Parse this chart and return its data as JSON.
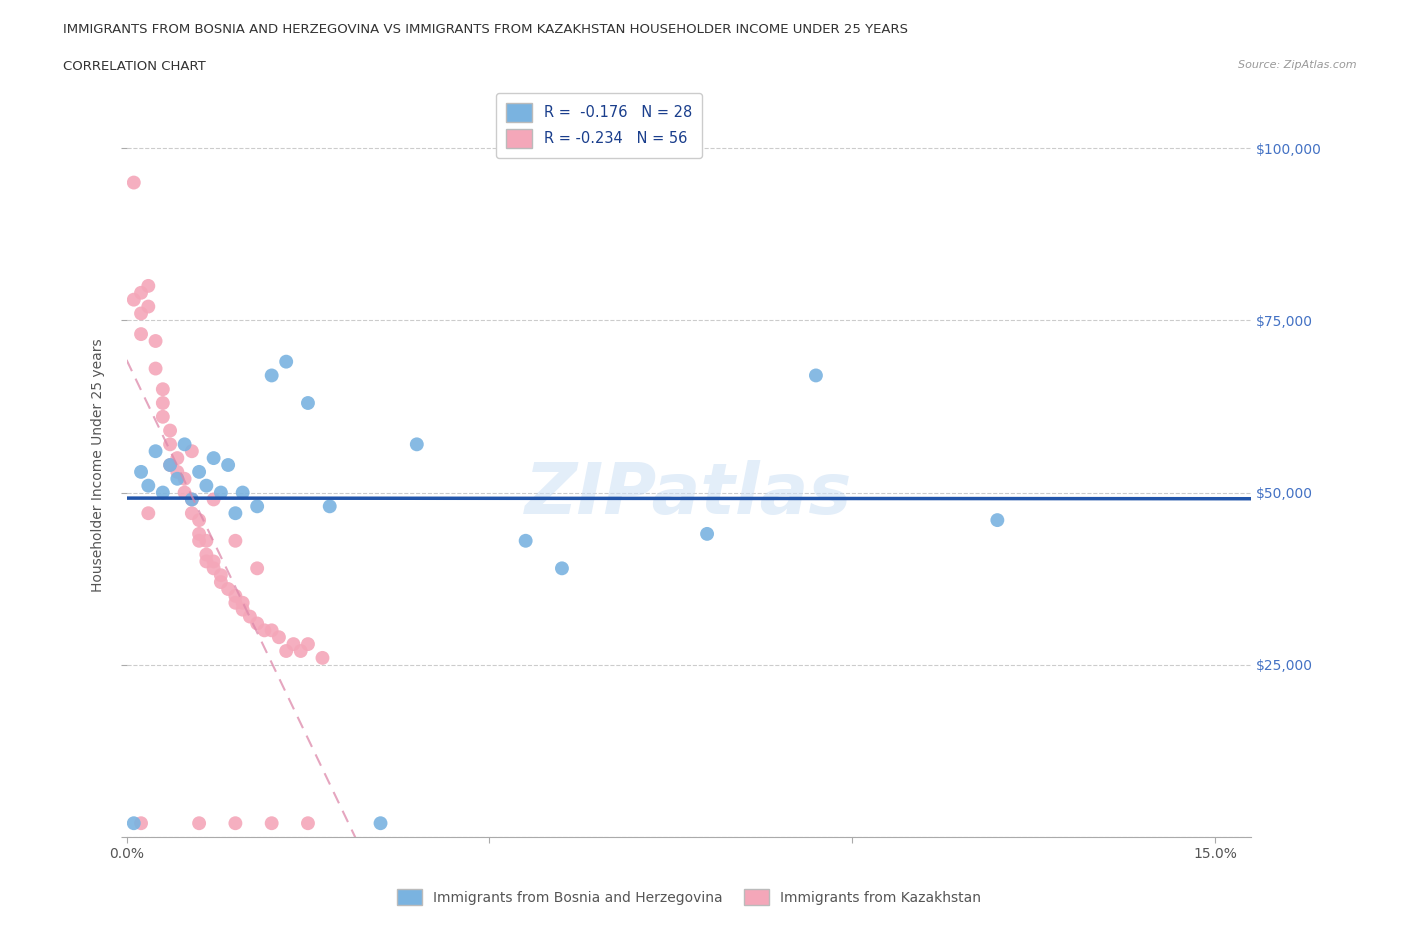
{
  "title_line1": "IMMIGRANTS FROM BOSNIA AND HERZEGOVINA VS IMMIGRANTS FROM KAZAKHSTAN HOUSEHOLDER INCOME UNDER 25 YEARS",
  "title_line2": "CORRELATION CHART",
  "source": "Source: ZipAtlas.com",
  "ylabel": "Householder Income Under 25 years",
  "xlim": [
    0,
    0.155
  ],
  "ylim": [
    0,
    108000
  ],
  "yticks": [
    0,
    25000,
    50000,
    75000,
    100000
  ],
  "xticks": [
    0.0,
    0.05,
    0.1,
    0.15
  ],
  "xtick_labels": [
    "0.0%",
    "",
    "",
    "15.0%"
  ],
  "ytick_labels_right": [
    "$100,000",
    "$75,000",
    "$50,000",
    "$25,000",
    ""
  ],
  "watermark": "ZIPatlas",
  "legend_r1": "R =  -0.176   N = 28",
  "legend_r2": "R = -0.234   N = 56",
  "legend_label1": "Immigrants from Bosnia and Herzegovina",
  "legend_label2": "Immigrants from Kazakhstan",
  "blue_color": "#7ab3e0",
  "pink_color": "#f4a7b9",
  "blue_line_color": "#2255aa",
  "pink_line_color": "#dd88aa",
  "background_color": "#ffffff",
  "grid_color": "#cccccc",
  "bosnia_x": [
    0.001,
    0.002,
    0.003,
    0.004,
    0.005,
    0.006,
    0.007,
    0.008,
    0.009,
    0.01,
    0.011,
    0.012,
    0.013,
    0.014,
    0.015,
    0.016,
    0.018,
    0.02,
    0.022,
    0.025,
    0.028,
    0.04,
    0.055,
    0.06,
    0.08,
    0.095,
    0.12,
    0.035
  ],
  "bosnia_y": [
    2000,
    53000,
    51000,
    56000,
    50000,
    54000,
    52000,
    57000,
    49000,
    53000,
    51000,
    55000,
    50000,
    54000,
    47000,
    50000,
    48000,
    67000,
    69000,
    63000,
    48000,
    57000,
    43000,
    39000,
    44000,
    67000,
    46000,
    2000
  ],
  "kazakh_x": [
    0.001,
    0.001,
    0.002,
    0.002,
    0.002,
    0.003,
    0.003,
    0.004,
    0.004,
    0.005,
    0.005,
    0.005,
    0.006,
    0.006,
    0.007,
    0.007,
    0.008,
    0.008,
    0.009,
    0.009,
    0.01,
    0.01,
    0.01,
    0.011,
    0.011,
    0.011,
    0.012,
    0.012,
    0.013,
    0.013,
    0.014,
    0.015,
    0.015,
    0.016,
    0.016,
    0.017,
    0.018,
    0.019,
    0.02,
    0.021,
    0.022,
    0.023,
    0.024,
    0.025,
    0.027,
    0.002,
    0.01,
    0.015,
    0.02,
    0.025,
    0.003,
    0.006,
    0.009,
    0.012,
    0.015,
    0.018
  ],
  "kazakh_y": [
    95000,
    78000,
    79000,
    76000,
    73000,
    80000,
    77000,
    72000,
    68000,
    65000,
    63000,
    61000,
    59000,
    57000,
    55000,
    53000,
    52000,
    50000,
    49000,
    47000,
    46000,
    44000,
    43000,
    43000,
    41000,
    40000,
    40000,
    39000,
    38000,
    37000,
    36000,
    35000,
    34000,
    34000,
    33000,
    32000,
    31000,
    30000,
    30000,
    29000,
    27000,
    28000,
    27000,
    28000,
    26000,
    2000,
    2000,
    2000,
    2000,
    2000,
    47000,
    54000,
    56000,
    49000,
    43000,
    39000
  ]
}
